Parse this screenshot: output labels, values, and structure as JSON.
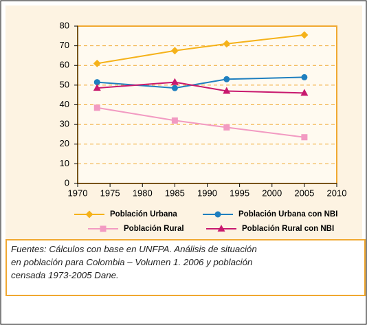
{
  "chart_data": {
    "type": "line",
    "x": [
      1973,
      1985,
      1993,
      2005
    ],
    "xlim": [
      1970,
      2010
    ],
    "xticks": [
      1970,
      1975,
      1980,
      1985,
      1990,
      1995,
      2000,
      2005,
      2010
    ],
    "ylim": [
      0,
      80
    ],
    "yticks": [
      0,
      10,
      20,
      30,
      40,
      50,
      60,
      70,
      80
    ],
    "grid": true,
    "series": [
      {
        "name": "Población Urbana",
        "color": "#f5b21a",
        "marker": "diamond",
        "values": [
          61,
          67.5,
          71,
          75.5
        ]
      },
      {
        "name": "Población Urbana con NBI",
        "color": "#1f7fbf",
        "marker": "circle",
        "values": [
          51.5,
          48.5,
          53,
          54
        ]
      },
      {
        "name": "Población Rural",
        "color": "#f29ac2",
        "marker": "square",
        "values": [
          38.5,
          32,
          28.5,
          23.5
        ]
      },
      {
        "name": "Población Rural con NBI",
        "color": "#c8196e",
        "marker": "triangle",
        "values": [
          48.5,
          51.5,
          47,
          46
        ]
      }
    ],
    "source": [
      "Fuentes: Cálculos con base en UNFPA. Análisis de situación",
      "en población para Colombia – Volumen 1. 2006 y población",
      "censada 1973-2005 Dane."
    ]
  }
}
